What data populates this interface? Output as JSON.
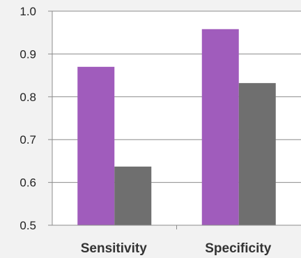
{
  "chart_data": {
    "type": "bar",
    "categories": [
      "Sensitivity",
      "Specificity"
    ],
    "series": [
      {
        "color": "#a05cbc",
        "values": [
          0.87,
          0.958
        ]
      },
      {
        "color": "#6f6f6f",
        "values": [
          0.637,
          0.832
        ]
      }
    ],
    "title": "",
    "xlabel": "",
    "ylabel": "",
    "ylim": [
      0.5,
      1.0
    ],
    "yticks": [
      {
        "value": 0.5,
        "label": "0.5"
      },
      {
        "value": 0.6,
        "label": "0.6"
      },
      {
        "value": 0.7,
        "label": "0.7"
      },
      {
        "value": 0.8,
        "label": "0.8"
      },
      {
        "value": 0.9,
        "label": "0.9"
      },
      {
        "value": 1.0,
        "label": "1.0"
      }
    ],
    "grid": true,
    "legend": "none"
  }
}
